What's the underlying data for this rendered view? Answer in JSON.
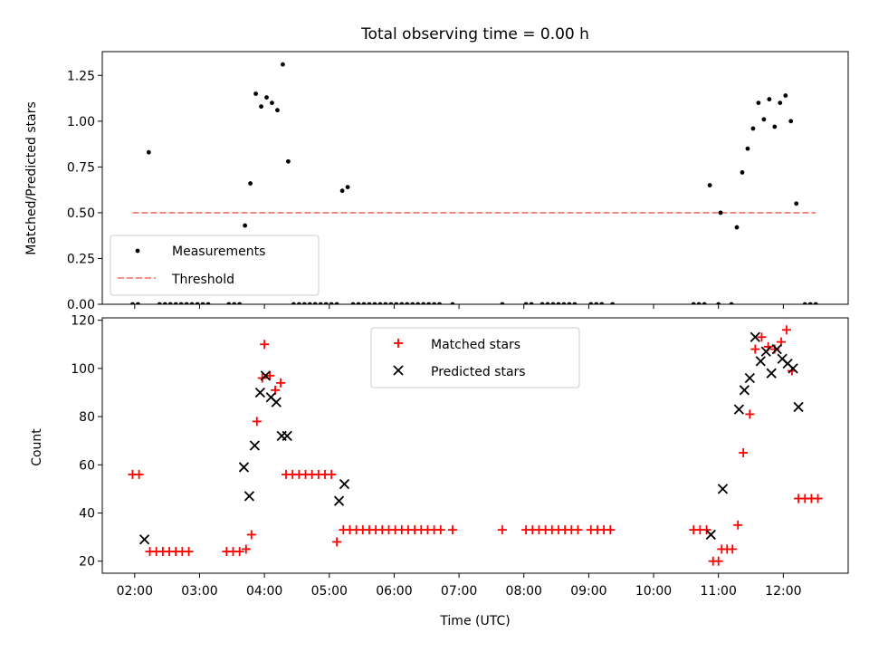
{
  "chart_data": [
    {
      "type": "scatter",
      "title": "Total observing time = 0.00 h",
      "ylabel": "Matched/Predicted stars",
      "xlabel": "",
      "xlim": [
        "01:30",
        "13:00"
      ],
      "ylim": [
        0,
        1.38
      ],
      "yticks": [
        "0.00",
        "0.25",
        "0.50",
        "0.75",
        "1.00",
        "1.25"
      ],
      "legend": {
        "placement": "lower-left",
        "entries": [
          "Measurements",
          "Threshold"
        ]
      },
      "threshold": {
        "name": "Threshold",
        "value": 0.5,
        "x_start": "01:58",
        "x_end": "12:30",
        "color": "#f08080"
      },
      "series": [
        {
          "name": "Measurements",
          "color": "#000000",
          "points": [
            [
              "02:13",
              0.83
            ],
            [
              "03:42",
              0.43
            ],
            [
              "03:47",
              0.66
            ],
            [
              "03:52",
              1.15
            ],
            [
              "03:57",
              1.08
            ],
            [
              "04:02",
              1.13
            ],
            [
              "04:07",
              1.1
            ],
            [
              "04:12",
              1.06
            ],
            [
              "04:17",
              1.31
            ],
            [
              "04:22",
              0.78
            ],
            [
              "05:12",
              0.62
            ],
            [
              "05:17",
              0.64
            ],
            [
              "10:52",
              0.65
            ],
            [
              "11:02",
              0.5
            ],
            [
              "11:17",
              0.42
            ],
            [
              "11:22",
              0.72
            ],
            [
              "11:27",
              0.85
            ],
            [
              "11:32",
              0.96
            ],
            [
              "11:37",
              1.1
            ],
            [
              "11:42",
              1.01
            ],
            [
              "11:47",
              1.12
            ],
            [
              "11:52",
              0.97
            ],
            [
              "11:57",
              1.1
            ],
            [
              "12:02",
              1.14
            ],
            [
              "12:07",
              1.0
            ],
            [
              "12:12",
              0.55
            ],
            [
              "01:58",
              0
            ],
            [
              "02:03",
              0
            ],
            [
              "02:23",
              0
            ],
            [
              "02:28",
              0
            ],
            [
              "02:33",
              0
            ],
            [
              "02:38",
              0
            ],
            [
              "02:43",
              0
            ],
            [
              "02:48",
              0
            ],
            [
              "02:53",
              0
            ],
            [
              "02:58",
              0
            ],
            [
              "03:03",
              0
            ],
            [
              "03:08",
              0
            ],
            [
              "03:27",
              0
            ],
            [
              "03:32",
              0
            ],
            [
              "03:37",
              0
            ],
            [
              "04:27",
              0
            ],
            [
              "04:32",
              0
            ],
            [
              "04:37",
              0
            ],
            [
              "04:42",
              0
            ],
            [
              "04:47",
              0
            ],
            [
              "04:52",
              0
            ],
            [
              "04:57",
              0
            ],
            [
              "05:02",
              0
            ],
            [
              "05:07",
              0
            ],
            [
              "05:22",
              0
            ],
            [
              "05:27",
              0
            ],
            [
              "05:32",
              0
            ],
            [
              "05:37",
              0
            ],
            [
              "05:42",
              0
            ],
            [
              "05:47",
              0
            ],
            [
              "05:52",
              0
            ],
            [
              "05:57",
              0
            ],
            [
              "06:02",
              0
            ],
            [
              "06:07",
              0
            ],
            [
              "06:12",
              0
            ],
            [
              "06:17",
              0
            ],
            [
              "06:22",
              0
            ],
            [
              "06:27",
              0
            ],
            [
              "06:32",
              0
            ],
            [
              "06:37",
              0
            ],
            [
              "06:42",
              0
            ],
            [
              "06:54",
              0
            ],
            [
              "07:40",
              0
            ],
            [
              "08:02",
              0
            ],
            [
              "08:07",
              0
            ],
            [
              "08:17",
              0
            ],
            [
              "08:22",
              0
            ],
            [
              "08:27",
              0
            ],
            [
              "08:32",
              0
            ],
            [
              "08:37",
              0
            ],
            [
              "08:42",
              0
            ],
            [
              "08:47",
              0
            ],
            [
              "09:02",
              0
            ],
            [
              "09:07",
              0
            ],
            [
              "09:12",
              0
            ],
            [
              "09:22",
              0
            ],
            [
              "10:37",
              0
            ],
            [
              "10:42",
              0
            ],
            [
              "10:47",
              0
            ],
            [
              "11:00",
              0
            ],
            [
              "11:12",
              0
            ],
            [
              "12:20",
              0
            ],
            [
              "12:25",
              0
            ],
            [
              "12:30",
              0
            ]
          ]
        }
      ]
    },
    {
      "type": "scatter",
      "title": "",
      "xlabel": "Time (UTC)",
      "ylabel": "Count",
      "xlim": [
        "01:30",
        "13:00"
      ],
      "ylim": [
        15,
        121
      ],
      "xticks": [
        "02:00",
        "03:00",
        "04:00",
        "05:00",
        "06:00",
        "07:00",
        "08:00",
        "09:00",
        "10:00",
        "11:00",
        "12:00"
      ],
      "yticks": [
        "20",
        "40",
        "60",
        "80",
        "100",
        "120"
      ],
      "legend": {
        "placement": "upper-center",
        "entries": [
          "Matched stars",
          "Predicted stars"
        ]
      },
      "series": [
        {
          "name": "Matched stars",
          "marker": "plus",
          "color": "#ff0000",
          "points": [
            [
              "01:58",
              56
            ],
            [
              "02:04",
              56
            ],
            [
              "02:14",
              24
            ],
            [
              "02:20",
              24
            ],
            [
              "02:26",
              24
            ],
            [
              "02:32",
              24
            ],
            [
              "02:38",
              24
            ],
            [
              "02:44",
              24
            ],
            [
              "02:50",
              24
            ],
            [
              "03:25",
              24
            ],
            [
              "03:31",
              24
            ],
            [
              "03:37",
              24
            ],
            [
              "03:43",
              25
            ],
            [
              "03:48",
              31
            ],
            [
              "03:53",
              78
            ],
            [
              "03:58",
              96
            ],
            [
              "04:00",
              110
            ],
            [
              "04:05",
              97
            ],
            [
              "04:10",
              91
            ],
            [
              "04:15",
              94
            ],
            [
              "04:20",
              56
            ],
            [
              "04:26",
              56
            ],
            [
              "04:32",
              56
            ],
            [
              "04:38",
              56
            ],
            [
              "04:44",
              56
            ],
            [
              "04:50",
              56
            ],
            [
              "04:56",
              56
            ],
            [
              "05:02",
              56
            ],
            [
              "05:07",
              28
            ],
            [
              "05:13",
              33
            ],
            [
              "05:19",
              33
            ],
            [
              "05:25",
              33
            ],
            [
              "05:31",
              33
            ],
            [
              "05:37",
              33
            ],
            [
              "05:43",
              33
            ],
            [
              "05:49",
              33
            ],
            [
              "05:55",
              33
            ],
            [
              "06:01",
              33
            ],
            [
              "06:07",
              33
            ],
            [
              "06:13",
              33
            ],
            [
              "06:19",
              33
            ],
            [
              "06:25",
              33
            ],
            [
              "06:31",
              33
            ],
            [
              "06:37",
              33
            ],
            [
              "06:43",
              33
            ],
            [
              "06:54",
              33
            ],
            [
              "07:40",
              33
            ],
            [
              "08:02",
              33
            ],
            [
              "08:08",
              33
            ],
            [
              "08:14",
              33
            ],
            [
              "08:20",
              33
            ],
            [
              "08:26",
              33
            ],
            [
              "08:32",
              33
            ],
            [
              "08:38",
              33
            ],
            [
              "08:44",
              33
            ],
            [
              "08:50",
              33
            ],
            [
              "09:02",
              33
            ],
            [
              "09:08",
              33
            ],
            [
              "09:14",
              33
            ],
            [
              "09:20",
              33
            ],
            [
              "10:37",
              33
            ],
            [
              "10:43",
              33
            ],
            [
              "10:49",
              33
            ],
            [
              "10:55",
              20
            ],
            [
              "11:00",
              20
            ],
            [
              "11:03",
              25
            ],
            [
              "11:08",
              25
            ],
            [
              "11:13",
              25
            ],
            [
              "11:18",
              35
            ],
            [
              "11:23",
              65
            ],
            [
              "11:29",
              81
            ],
            [
              "11:34",
              108
            ],
            [
              "11:40",
              113
            ],
            [
              "11:46",
              109
            ],
            [
              "11:52",
              108
            ],
            [
              "11:58",
              111
            ],
            [
              "12:03",
              116
            ],
            [
              "12:08",
              99
            ],
            [
              "12:14",
              46
            ],
            [
              "12:20",
              46
            ],
            [
              "12:26",
              46
            ],
            [
              "12:32",
              46
            ]
          ]
        },
        {
          "name": "Predicted stars",
          "marker": "x",
          "color": "#000000",
          "points": [
            [
              "02:09",
              29
            ],
            [
              "03:41",
              59
            ],
            [
              "03:46",
              47
            ],
            [
              "03:51",
              68
            ],
            [
              "03:56",
              90
            ],
            [
              "04:01",
              97
            ],
            [
              "04:06",
              88
            ],
            [
              "04:11",
              86
            ],
            [
              "04:16",
              72
            ],
            [
              "04:21",
              72
            ],
            [
              "05:09",
              45
            ],
            [
              "05:14",
              52
            ],
            [
              "10:53",
              31
            ],
            [
              "11:04",
              50
            ],
            [
              "11:19",
              83
            ],
            [
              "11:24",
              91
            ],
            [
              "11:29",
              96
            ],
            [
              "11:34",
              113
            ],
            [
              "11:39",
              103
            ],
            [
              "11:44",
              107
            ],
            [
              "11:49",
              98
            ],
            [
              "11:54",
              108
            ],
            [
              "11:59",
              104
            ],
            [
              "12:04",
              102
            ],
            [
              "12:09",
              100
            ],
            [
              "12:14",
              84
            ]
          ]
        }
      ]
    }
  ]
}
